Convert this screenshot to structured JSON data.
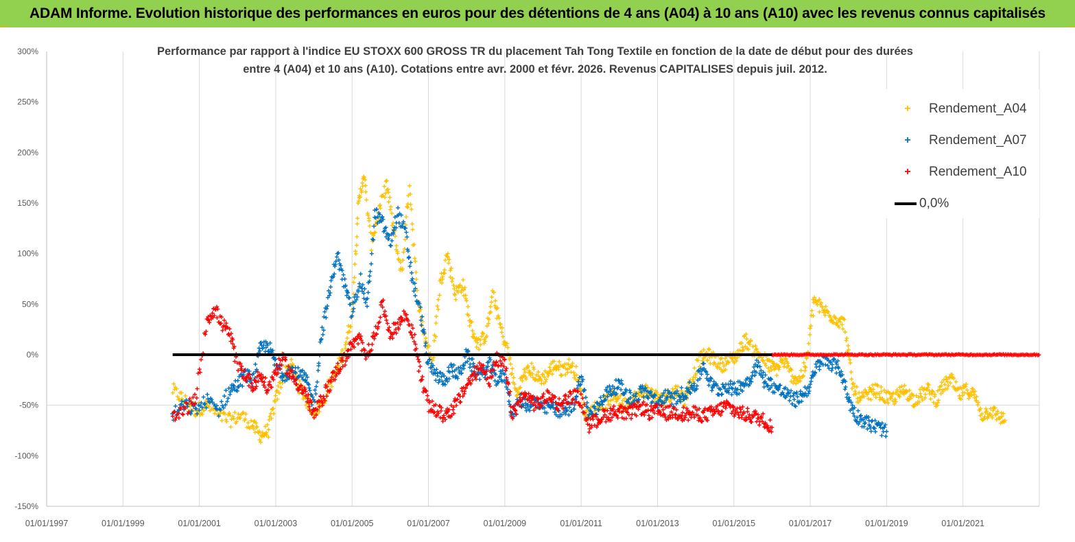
{
  "banner": {
    "title": "ADAM Informe. Evolution historique des performances en euros pour des détentions de 4 ans (A04) à 10 ans (A10) avec les revenus connus capitalisés"
  },
  "chart_data": {
    "type": "scatter",
    "title_line1": "Performance par rapport à l'indice EU STOXX 600 GROSS TR  du placement Tah Tong Textile  en fonction de la date de début pour des durées",
    "title_line2": "entre 4 (A04) et 10 ans (A10).  Cotations entre avr. 2000 et févr. 2026. Revenus CAPITALISES depuis juil. 2012.",
    "xlabel": "",
    "ylabel": "",
    "ylim": [
      -150,
      300
    ],
    "yticks": [
      300,
      250,
      200,
      150,
      100,
      50,
      0,
      -50,
      -100,
      -150
    ],
    "ytick_labels": [
      "300%",
      "250%",
      "200%",
      "150%",
      "100%",
      "50%",
      "0%",
      "-50%",
      "-100%",
      "-150%"
    ],
    "xlim": [
      "01/01/1997",
      "01/01/2023"
    ],
    "xtick_labels": [
      "01/01/1997",
      "01/01/1999",
      "01/01/2001",
      "01/01/2003",
      "01/01/2005",
      "01/01/2007",
      "01/01/2009",
      "01/01/2011",
      "01/01/2013",
      "01/01/2015",
      "01/01/2017",
      "01/01/2019",
      "01/01/2021"
    ],
    "grid": "vertical",
    "legend_position": "top-right",
    "series": [
      {
        "name": "Rendement_A04",
        "color": "#ffc000",
        "marker": "plus",
        "points": [
          [
            2000.3,
            -35
          ],
          [
            2000.6,
            -45
          ],
          [
            2000.9,
            -55
          ],
          [
            2001.2,
            -50
          ],
          [
            2001.5,
            -60
          ],
          [
            2001.8,
            -65
          ],
          [
            2002.1,
            -60
          ],
          [
            2002.4,
            -70
          ],
          [
            2002.6,
            -80
          ],
          [
            2002.8,
            -75
          ],
          [
            2003.0,
            -45
          ],
          [
            2003.2,
            -20
          ],
          [
            2003.4,
            -10
          ],
          [
            2003.6,
            -30
          ],
          [
            2003.8,
            -45
          ],
          [
            2004.0,
            -55
          ],
          [
            2004.2,
            -50
          ],
          [
            2004.4,
            -30
          ],
          [
            2004.6,
            -15
          ],
          [
            2004.8,
            5
          ],
          [
            2005.0,
            40
          ],
          [
            2005.15,
            140
          ],
          [
            2005.3,
            180
          ],
          [
            2005.5,
            110
          ],
          [
            2005.7,
            140
          ],
          [
            2005.9,
            170
          ],
          [
            2006.1,
            120
          ],
          [
            2006.3,
            80
          ],
          [
            2006.5,
            170
          ],
          [
            2006.7,
            60
          ],
          [
            2006.9,
            20
          ],
          [
            2007.1,
            -10
          ],
          [
            2007.3,
            70
          ],
          [
            2007.5,
            100
          ],
          [
            2007.7,
            60
          ],
          [
            2007.9,
            70
          ],
          [
            2008.1,
            30
          ],
          [
            2008.3,
            10
          ],
          [
            2008.5,
            20
          ],
          [
            2008.7,
            60
          ],
          [
            2008.9,
            25
          ],
          [
            2009.1,
            0
          ],
          [
            2009.3,
            -40
          ],
          [
            2009.5,
            -20
          ],
          [
            2009.7,
            -15
          ],
          [
            2009.9,
            -25
          ],
          [
            2010.1,
            -20
          ],
          [
            2010.3,
            -10
          ],
          [
            2010.5,
            -15
          ],
          [
            2010.7,
            -10
          ],
          [
            2010.9,
            -20
          ],
          [
            2011.1,
            -60
          ],
          [
            2011.3,
            -55
          ],
          [
            2011.5,
            -50
          ],
          [
            2011.7,
            -45
          ],
          [
            2011.9,
            -40
          ],
          [
            2012.1,
            -50
          ],
          [
            2012.3,
            -45
          ],
          [
            2012.5,
            -40
          ],
          [
            2012.7,
            -35
          ],
          [
            2012.9,
            -40
          ],
          [
            2013.1,
            -45
          ],
          [
            2013.3,
            -40
          ],
          [
            2013.5,
            -35
          ],
          [
            2013.7,
            -45
          ],
          [
            2013.9,
            -25
          ],
          [
            2014.1,
            -5
          ],
          [
            2014.3,
            0
          ],
          [
            2014.5,
            -5
          ],
          [
            2014.7,
            -10
          ],
          [
            2014.9,
            -5
          ],
          [
            2015.1,
            0
          ],
          [
            2015.3,
            15
          ],
          [
            2015.5,
            5
          ],
          [
            2015.7,
            0
          ],
          [
            2015.9,
            -10
          ],
          [
            2016.1,
            -15
          ],
          [
            2016.3,
            -5
          ],
          [
            2016.5,
            -20
          ],
          [
            2016.7,
            -25
          ],
          [
            2016.9,
            -10
          ],
          [
            2017.1,
            55
          ],
          [
            2017.3,
            45
          ],
          [
            2017.5,
            40
          ],
          [
            2017.7,
            35
          ],
          [
            2017.9,
            30
          ],
          [
            2018.1,
            -30
          ],
          [
            2018.3,
            -45
          ],
          [
            2018.5,
            -40
          ],
          [
            2018.7,
            -35
          ],
          [
            2018.9,
            -40
          ],
          [
            2019.1,
            -45
          ],
          [
            2019.3,
            -40
          ],
          [
            2019.5,
            -35
          ],
          [
            2019.7,
            -45
          ],
          [
            2019.9,
            -40
          ],
          [
            2020.1,
            -35
          ],
          [
            2020.3,
            -45
          ],
          [
            2020.5,
            -30
          ],
          [
            2020.7,
            -25
          ],
          [
            2020.9,
            -40
          ],
          [
            2021.1,
            -35
          ],
          [
            2021.3,
            -40
          ],
          [
            2021.5,
            -60
          ],
          [
            2021.7,
            -55
          ],
          [
            2021.9,
            -60
          ],
          [
            2022.1,
            -65
          ]
        ]
      },
      {
        "name": "Rendement_A07",
        "color": "#0070c0",
        "marker": "plus",
        "points": [
          [
            2000.3,
            -60
          ],
          [
            2000.6,
            -50
          ],
          [
            2000.9,
            -55
          ],
          [
            2001.2,
            -45
          ],
          [
            2001.5,
            -55
          ],
          [
            2001.8,
            -35
          ],
          [
            2002.0,
            -30
          ],
          [
            2002.2,
            -20
          ],
          [
            2002.4,
            -25
          ],
          [
            2002.6,
            5
          ],
          [
            2002.8,
            10
          ],
          [
            2003.0,
            -10
          ],
          [
            2003.2,
            -20
          ],
          [
            2003.4,
            -15
          ],
          [
            2003.6,
            -20
          ],
          [
            2003.8,
            -25
          ],
          [
            2004.0,
            -50
          ],
          [
            2004.2,
            20
          ],
          [
            2004.4,
            60
          ],
          [
            2004.6,
            100
          ],
          [
            2004.8,
            70
          ],
          [
            2005.0,
            40
          ],
          [
            2005.2,
            75
          ],
          [
            2005.4,
            50
          ],
          [
            2005.6,
            140
          ],
          [
            2005.8,
            130
          ],
          [
            2006.0,
            110
          ],
          [
            2006.2,
            140
          ],
          [
            2006.4,
            120
          ],
          [
            2006.6,
            70
          ],
          [
            2006.8,
            40
          ],
          [
            2007.0,
            -10
          ],
          [
            2007.2,
            -20
          ],
          [
            2007.4,
            -25
          ],
          [
            2007.6,
            -15
          ],
          [
            2007.8,
            -20
          ],
          [
            2008.0,
            0
          ],
          [
            2008.2,
            -15
          ],
          [
            2008.4,
            -20
          ],
          [
            2008.6,
            -10
          ],
          [
            2008.8,
            -25
          ],
          [
            2009.0,
            -20
          ],
          [
            2009.2,
            -60
          ],
          [
            2009.4,
            -45
          ],
          [
            2009.6,
            -50
          ],
          [
            2009.8,
            -45
          ],
          [
            2010.0,
            -55
          ],
          [
            2010.2,
            -50
          ],
          [
            2010.4,
            -55
          ],
          [
            2010.6,
            -55
          ],
          [
            2010.8,
            -50
          ],
          [
            2011.0,
            -20
          ],
          [
            2011.2,
            -60
          ],
          [
            2011.4,
            -55
          ],
          [
            2011.6,
            -40
          ],
          [
            2011.8,
            -35
          ],
          [
            2012.0,
            -30
          ],
          [
            2012.2,
            -40
          ],
          [
            2012.4,
            -45
          ],
          [
            2012.6,
            -35
          ],
          [
            2012.8,
            -40
          ],
          [
            2013.0,
            -50
          ],
          [
            2013.2,
            -40
          ],
          [
            2013.4,
            -45
          ],
          [
            2013.6,
            -40
          ],
          [
            2013.8,
            -35
          ],
          [
            2014.0,
            -30
          ],
          [
            2014.2,
            -10
          ],
          [
            2014.4,
            -30
          ],
          [
            2014.6,
            -35
          ],
          [
            2014.8,
            -30
          ],
          [
            2015.0,
            -35
          ],
          [
            2015.2,
            -30
          ],
          [
            2015.4,
            -25
          ],
          [
            2015.6,
            -10
          ],
          [
            2015.8,
            -25
          ],
          [
            2016.0,
            -30
          ],
          [
            2016.2,
            -35
          ],
          [
            2016.4,
            -40
          ],
          [
            2016.6,
            -45
          ],
          [
            2016.8,
            -40
          ],
          [
            2017.0,
            -30
          ],
          [
            2017.2,
            -10
          ],
          [
            2017.4,
            -5
          ],
          [
            2017.6,
            -10
          ],
          [
            2017.8,
            -15
          ],
          [
            2018.0,
            -45
          ],
          [
            2018.2,
            -60
          ],
          [
            2018.4,
            -65
          ],
          [
            2018.6,
            -70
          ],
          [
            2018.8,
            -72
          ],
          [
            2019.0,
            -76
          ]
        ]
      },
      {
        "name": "Rendement_A10",
        "color": "#ff0000",
        "marker": "plus",
        "points": [
          [
            2000.3,
            -65
          ],
          [
            2000.6,
            -55
          ],
          [
            2000.9,
            -45
          ],
          [
            2001.2,
            35
          ],
          [
            2001.4,
            45
          ],
          [
            2001.6,
            30
          ],
          [
            2001.8,
            20
          ],
          [
            2002.0,
            -10
          ],
          [
            2002.2,
            -20
          ],
          [
            2002.4,
            -30
          ],
          [
            2002.6,
            -20
          ],
          [
            2002.8,
            -35
          ],
          [
            2003.0,
            -15
          ],
          [
            2003.2,
            -5
          ],
          [
            2003.4,
            -20
          ],
          [
            2003.6,
            -30
          ],
          [
            2003.8,
            -40
          ],
          [
            2004.0,
            -60
          ],
          [
            2004.2,
            -45
          ],
          [
            2004.4,
            -30
          ],
          [
            2004.6,
            -15
          ],
          [
            2004.8,
            -5
          ],
          [
            2005.0,
            10
          ],
          [
            2005.2,
            15
          ],
          [
            2005.4,
            0
          ],
          [
            2005.6,
            20
          ],
          [
            2005.8,
            50
          ],
          [
            2006.0,
            20
          ],
          [
            2006.2,
            30
          ],
          [
            2006.4,
            40
          ],
          [
            2006.6,
            20
          ],
          [
            2006.8,
            -20
          ],
          [
            2007.0,
            -50
          ],
          [
            2007.2,
            -55
          ],
          [
            2007.4,
            -60
          ],
          [
            2007.6,
            -55
          ],
          [
            2007.8,
            -45
          ],
          [
            2008.0,
            -30
          ],
          [
            2008.2,
            -20
          ],
          [
            2008.4,
            -10
          ],
          [
            2008.6,
            -25
          ],
          [
            2008.8,
            -5
          ],
          [
            2009.0,
            -10
          ],
          [
            2009.2,
            -60
          ],
          [
            2009.4,
            -45
          ],
          [
            2009.6,
            -40
          ],
          [
            2009.8,
            -50
          ],
          [
            2010.0,
            -45
          ],
          [
            2010.2,
            -40
          ],
          [
            2010.4,
            -50
          ],
          [
            2010.6,
            -45
          ],
          [
            2010.8,
            -40
          ],
          [
            2011.0,
            -45
          ],
          [
            2011.2,
            -70
          ],
          [
            2011.4,
            -65
          ],
          [
            2011.6,
            -60
          ],
          [
            2011.8,
            -58
          ],
          [
            2012.0,
            -55
          ],
          [
            2012.2,
            -60
          ],
          [
            2012.4,
            -55
          ],
          [
            2012.6,
            -52
          ],
          [
            2012.8,
            -58
          ],
          [
            2013.0,
            -56
          ],
          [
            2013.2,
            -58
          ],
          [
            2013.4,
            -57
          ],
          [
            2013.6,
            -58
          ],
          [
            2013.8,
            -59
          ],
          [
            2014.0,
            -58
          ],
          [
            2014.2,
            -60
          ],
          [
            2014.4,
            -58
          ],
          [
            2014.6,
            -55
          ],
          [
            2014.8,
            -50
          ],
          [
            2015.0,
            -55
          ],
          [
            2015.2,
            -58
          ],
          [
            2015.4,
            -60
          ],
          [
            2015.6,
            -62
          ],
          [
            2015.8,
            -65
          ],
          [
            2016.0,
            -72
          ]
        ],
        "flat_segment": {
          "from": 2016.0,
          "to": 2023.0,
          "value": 0
        }
      },
      {
        "name": "0,0%",
        "color": "#000000",
        "marker": "line",
        "points": [
          [
            2000.3,
            0
          ],
          [
            2016.0,
            0
          ]
        ]
      }
    ]
  }
}
